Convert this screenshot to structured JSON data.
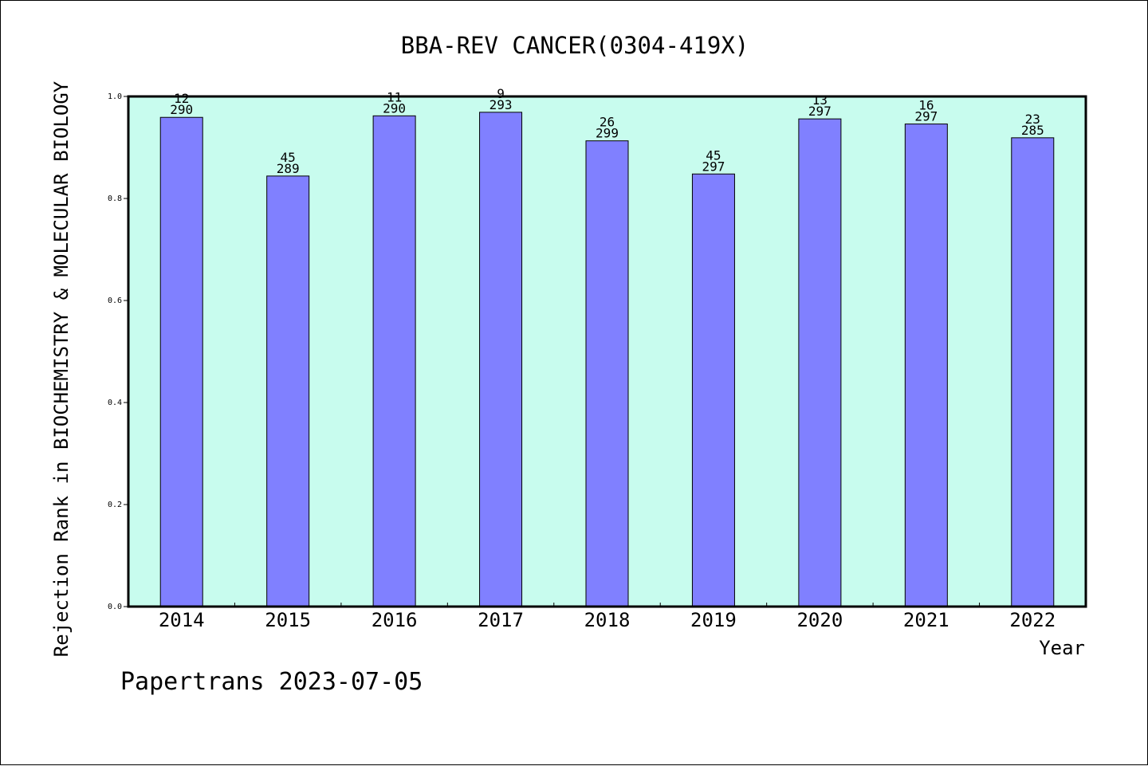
{
  "chart_data": {
    "type": "bar",
    "title": "BBA-REV CANCER(0304-419X)",
    "xlabel": "Year",
    "ylabel": "Rejection Rank in BIOCHEMISTRY & MOLECULAR BIOLOGY",
    "categories": [
      "2014",
      "2015",
      "2016",
      "2017",
      "2018",
      "2019",
      "2020",
      "2021",
      "2022"
    ],
    "values": [
      0.959,
      0.844,
      0.962,
      0.969,
      0.913,
      0.848,
      0.956,
      0.946,
      0.919
    ],
    "label_top": [
      "12",
      "45",
      "11",
      "9",
      "26",
      "45",
      "13",
      "16",
      "23"
    ],
    "label_bottom": [
      "290",
      "289",
      "290",
      "293",
      "299",
      "297",
      "297",
      "297",
      "285"
    ],
    "ylim": [
      0,
      1.0
    ],
    "yticks": [
      "0.0",
      "0.2",
      "0.4",
      "0.6",
      "0.8",
      "1.0"
    ],
    "grid": false,
    "colors": {
      "plot_background": "#c8fcee",
      "bar_fill": "#8080ff",
      "bar_stroke": "#000000"
    },
    "footer": "Papertrans 2023-07-05"
  }
}
